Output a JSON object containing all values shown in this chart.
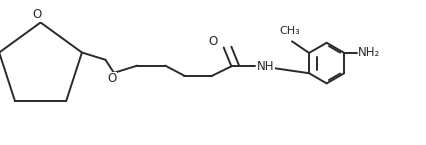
{
  "bg_color": "#ffffff",
  "line_color": "#2a2a2a",
  "line_width": 1.4,
  "font_size": 8.5,
  "figsize": [
    4.27,
    1.45
  ],
  "dpi": 100,
  "O_text": "O",
  "NH_text": "NH",
  "NH2_text": "NH₂"
}
